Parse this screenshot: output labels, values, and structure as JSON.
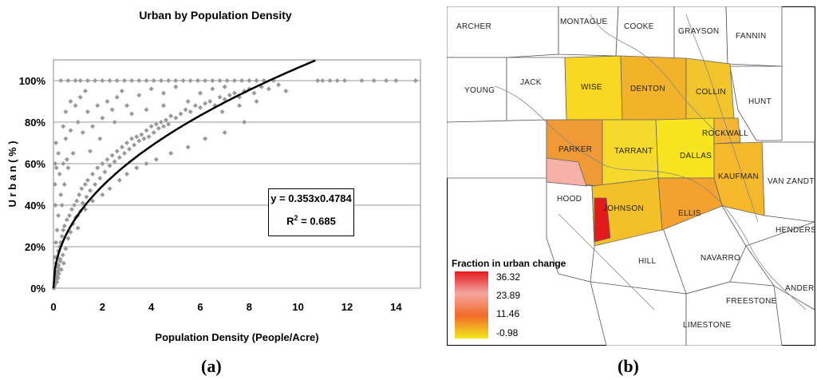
{
  "panel_a": {
    "label": "(a)",
    "equation_line": "y = 0.353x0.4784",
    "r2_prefix": "R",
    "r2_sup": "2",
    "r2_value": " = 0.685"
  },
  "panel_b": {
    "label": "(b)",
    "legend": {
      "title": "Fraction in urban change",
      "values": [
        "36.32",
        "23.89",
        "11.46",
        "-0.98"
      ],
      "colors": [
        "#e41a1c",
        "#f4a6a0",
        "#f26a2a",
        "#f5e81c"
      ]
    },
    "counties": [
      "ARCHER",
      "MONTAGUE",
      "COOKE",
      "GRAYSON",
      "FANNIN",
      "YOUNG",
      "JACK",
      "WISE",
      "DENTON",
      "COLLIN",
      "HUNT",
      "ROCKWALL",
      "PARKER",
      "TARRANT",
      "DALLAS",
      "KAUFMAN",
      "VAN ZANDT",
      "HOOD",
      "JOHNSON",
      "ELLIS",
      "HENDERSON",
      "HILL",
      "NAVARRO",
      "ANDERSON",
      "FREESTONE",
      "LIMESTONE"
    ]
  },
  "chart_data": {
    "type": "scatter",
    "title": "Urban by Population Density",
    "xlabel": "Population Density (People/Acre)",
    "ylabel": "U r b a n  ( % )",
    "xlim": [
      0,
      15
    ],
    "ylim": [
      0,
      110
    ],
    "xticks": [
      0,
      2,
      4,
      6,
      8,
      10,
      12,
      14
    ],
    "yticks": [
      0,
      20,
      40,
      60,
      80,
      100
    ],
    "ytick_labels": [
      "0%",
      "20%",
      "40%",
      "60%",
      "80%",
      "100%"
    ],
    "marker_color": "#999999",
    "trend": {
      "type": "power",
      "a": 0.353,
      "b": 0.4784,
      "r2": 0.685
    },
    "points": [
      [
        0.05,
        3
      ],
      [
        0.08,
        8
      ],
      [
        0.1,
        12
      ],
      [
        0.12,
        5
      ],
      [
        0.15,
        15
      ],
      [
        0.18,
        10
      ],
      [
        0.2,
        18
      ],
      [
        0.22,
        7
      ],
      [
        0.25,
        20
      ],
      [
        0.28,
        14
      ],
      [
        0.3,
        22
      ],
      [
        0.32,
        9
      ],
      [
        0.35,
        25
      ],
      [
        0.38,
        16
      ],
      [
        0.4,
        28
      ],
      [
        0.42,
        12
      ],
      [
        0.45,
        30
      ],
      [
        0.5,
        19
      ],
      [
        0.55,
        33
      ],
      [
        0.6,
        24
      ],
      [
        0.65,
        35
      ],
      [
        0.7,
        27
      ],
      [
        0.75,
        38
      ],
      [
        0.8,
        31
      ],
      [
        0.85,
        40
      ],
      [
        0.9,
        34
      ],
      [
        0.95,
        42
      ],
      [
        1.0,
        29
      ],
      [
        1.05,
        45
      ],
      [
        1.1,
        37
      ],
      [
        1.15,
        48
      ],
      [
        1.2,
        41
      ],
      [
        1.3,
        50
      ],
      [
        1.35,
        44
      ],
      [
        1.4,
        52
      ],
      [
        1.5,
        47
      ],
      [
        1.6,
        55
      ],
      [
        1.7,
        50
      ],
      [
        1.8,
        58
      ],
      [
        1.9,
        53
      ],
      [
        2.0,
        60
      ],
      [
        2.1,
        56
      ],
      [
        2.2,
        62
      ],
      [
        2.3,
        59
      ],
      [
        2.4,
        64
      ],
      [
        2.5,
        61
      ],
      [
        2.6,
        66
      ],
      [
        2.7,
        63
      ],
      [
        2.8,
        68
      ],
      [
        2.9,
        65
      ],
      [
        3.0,
        70
      ],
      [
        3.1,
        67
      ],
      [
        3.2,
        72
      ],
      [
        3.3,
        69
      ],
      [
        3.4,
        73
      ],
      [
        3.5,
        71
      ],
      [
        3.6,
        74
      ],
      [
        3.7,
        72
      ],
      [
        3.8,
        76
      ],
      [
        3.9,
        73
      ],
      [
        4.0,
        78
      ],
      [
        4.1,
        75
      ],
      [
        4.2,
        79
      ],
      [
        4.3,
        77
      ],
      [
        4.4,
        80
      ],
      [
        4.5,
        78
      ],
      [
        4.6,
        81
      ],
      [
        4.7,
        79
      ],
      [
        4.8,
        83
      ],
      [
        5.0,
        82
      ],
      [
        5.2,
        84
      ],
      [
        5.4,
        86
      ],
      [
        5.6,
        85
      ],
      [
        5.8,
        88
      ],
      [
        6.0,
        87
      ],
      [
        6.2,
        89
      ],
      [
        6.4,
        90
      ],
      [
        6.6,
        88
      ],
      [
        6.8,
        92
      ],
      [
        7.0,
        91
      ],
      [
        7.2,
        93
      ],
      [
        7.4,
        94
      ],
      [
        7.6,
        92
      ],
      [
        7.8,
        95
      ],
      [
        8.0,
        96
      ],
      [
        8.2,
        94
      ],
      [
        8.5,
        97
      ],
      [
        8.8,
        96
      ],
      [
        9.2,
        98
      ],
      [
        0.3,
        45
      ],
      [
        0.4,
        60
      ],
      [
        0.5,
        72
      ],
      [
        0.6,
        58
      ],
      [
        0.7,
        76
      ],
      [
        0.8,
        65
      ],
      [
        0.25,
        55
      ],
      [
        0.35,
        40
      ],
      [
        0.45,
        50
      ],
      [
        0.55,
        62
      ],
      [
        1.0,
        80
      ],
      [
        1.2,
        75
      ],
      [
        1.4,
        85
      ],
      [
        1.6,
        78
      ],
      [
        1.8,
        88
      ],
      [
        2.0,
        82
      ],
      [
        2.2,
        90
      ],
      [
        2.4,
        86
      ],
      [
        2.6,
        92
      ],
      [
        2.8,
        95
      ],
      [
        3.0,
        88
      ],
      [
        3.5,
        93
      ],
      [
        4.0,
        96
      ],
      [
        4.5,
        94
      ],
      [
        5.0,
        97
      ],
      [
        1.0,
        35
      ],
      [
        1.3,
        38
      ],
      [
        1.6,
        42
      ],
      [
        2.0,
        45
      ],
      [
        2.3,
        48
      ],
      [
        2.7,
        52
      ],
      [
        3.0,
        55
      ],
      [
        3.4,
        58
      ],
      [
        3.8,
        60
      ],
      [
        4.2,
        62
      ],
      [
        4.8,
        65
      ],
      [
        5.5,
        68
      ],
      [
        6.2,
        72
      ],
      [
        7.0,
        75
      ],
      [
        7.8,
        80
      ],
      [
        0.15,
        28
      ],
      [
        0.2,
        35
      ],
      [
        0.1,
        22
      ],
      [
        0.05,
        15
      ],
      [
        0.08,
        40
      ],
      [
        0.06,
        50
      ],
      [
        0.07,
        60
      ],
      [
        0.1,
        70
      ],
      [
        0.12,
        58
      ],
      [
        0.2,
        65
      ],
      [
        0.3,
        100
      ],
      [
        0.6,
        100
      ],
      [
        0.9,
        100
      ],
      [
        1.1,
        100
      ],
      [
        1.4,
        100
      ],
      [
        1.7,
        100
      ],
      [
        2.0,
        100
      ],
      [
        2.3,
        100
      ],
      [
        2.6,
        100
      ],
      [
        2.9,
        100
      ],
      [
        3.2,
        100
      ],
      [
        3.5,
        100
      ],
      [
        3.8,
        100
      ],
      [
        4.1,
        100
      ],
      [
        4.4,
        100
      ],
      [
        4.7,
        100
      ],
      [
        5.0,
        100
      ],
      [
        5.3,
        100
      ],
      [
        5.6,
        100
      ],
      [
        5.9,
        100
      ],
      [
        6.2,
        100
      ],
      [
        6.5,
        100
      ],
      [
        6.8,
        100
      ],
      [
        7.1,
        100
      ],
      [
        7.4,
        100
      ],
      [
        7.7,
        100
      ],
      [
        8.0,
        100
      ],
      [
        8.3,
        100
      ],
      [
        8.6,
        100
      ],
      [
        9.0,
        100
      ],
      [
        10.8,
        100
      ],
      [
        11.0,
        100
      ],
      [
        11.3,
        100
      ],
      [
        11.6,
        100
      ],
      [
        11.9,
        100
      ],
      [
        12.6,
        100
      ],
      [
        13.1,
        100
      ],
      [
        13.6,
        100
      ],
      [
        14.0,
        100
      ],
      [
        14.8,
        100
      ],
      [
        0.04,
        1
      ],
      [
        0.02,
        0
      ],
      [
        0.06,
        2
      ],
      [
        0.09,
        4
      ],
      [
        0.11,
        6
      ],
      [
        0.14,
        3
      ],
      [
        0.16,
        8
      ],
      [
        0.19,
        5
      ],
      [
        0.21,
        11
      ],
      [
        0.24,
        9
      ],
      [
        0.27,
        13
      ],
      [
        5.5,
        90
      ],
      [
        6.0,
        94
      ],
      [
        6.5,
        96
      ],
      [
        7.0,
        97
      ],
      [
        4.5,
        88
      ],
      [
        3.8,
        86
      ],
      [
        3.2,
        84
      ],
      [
        2.5,
        80
      ],
      [
        1.9,
        72
      ],
      [
        1.5,
        66
      ],
      [
        8.3,
        90
      ],
      [
        7.6,
        88
      ],
      [
        6.9,
        85
      ],
      [
        9.5,
        95
      ],
      [
        0.5,
        85
      ],
      [
        0.7,
        90
      ],
      [
        0.4,
        78
      ],
      [
        1.1,
        92
      ],
      [
        0.9,
        88
      ],
      [
        1.3,
        95
      ]
    ]
  }
}
